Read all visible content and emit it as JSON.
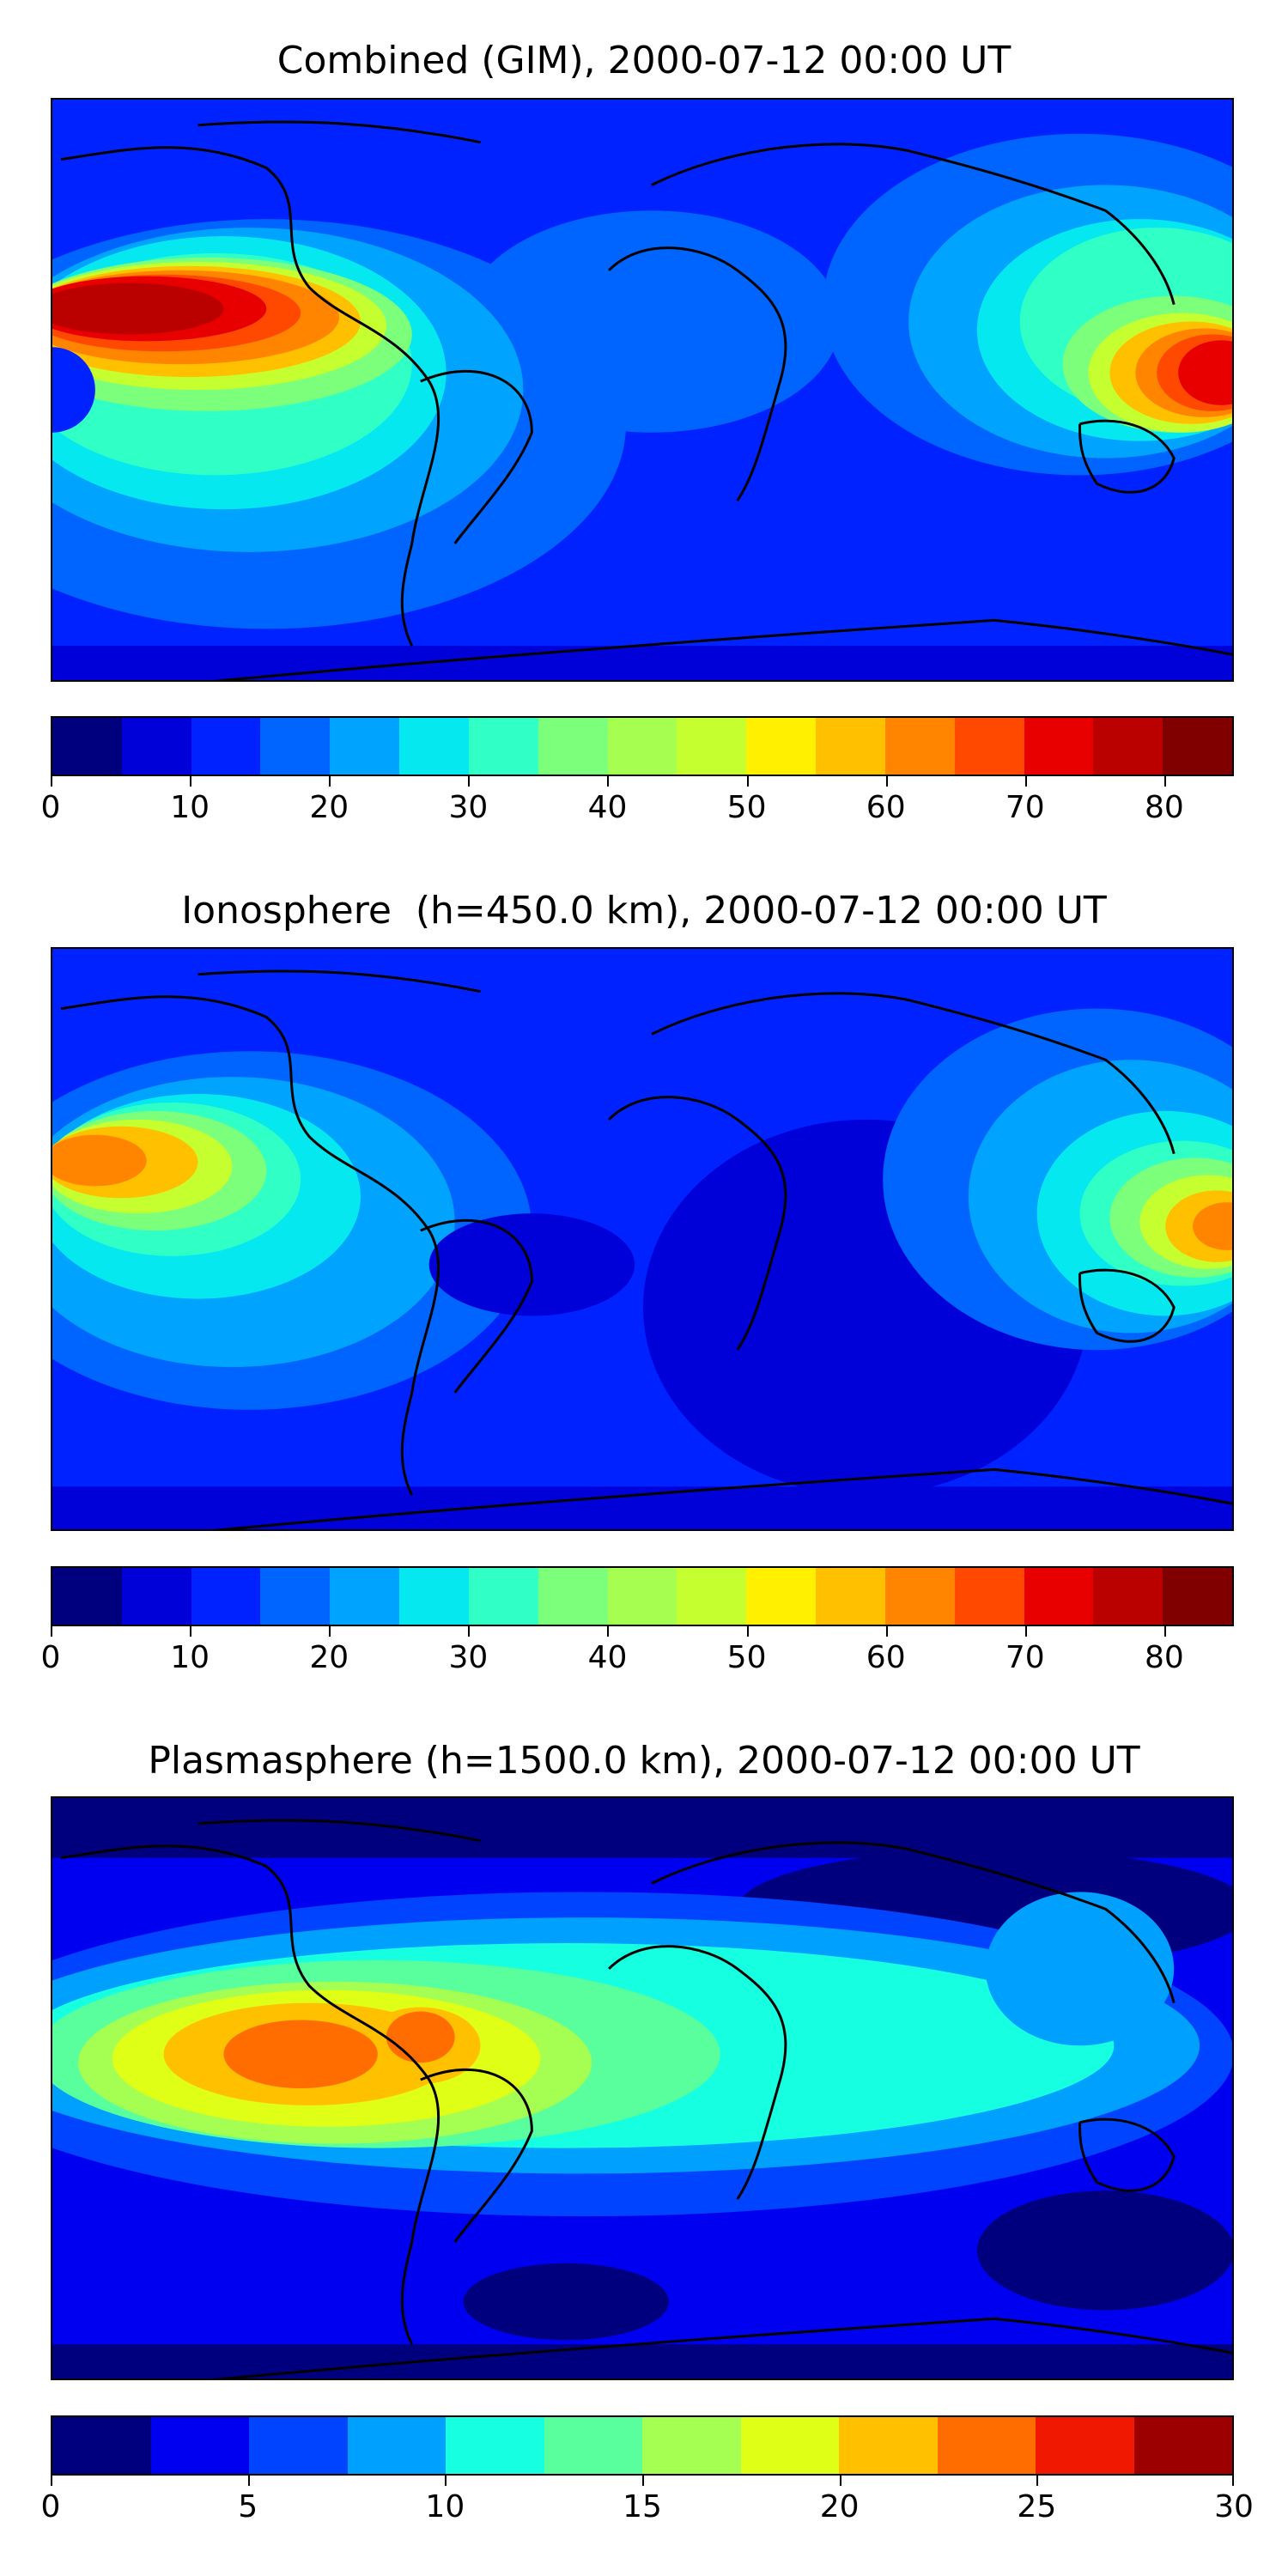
{
  "panels": [
    {
      "title": "Combined (GIM), 2000-07-12 00:00 UT",
      "colorbar": {
        "min": 0,
        "max": 85,
        "step": 5,
        "tick_labels": [
          "0",
          "10",
          "20",
          "30",
          "40",
          "50",
          "60",
          "70",
          "80"
        ],
        "tick_values": [
          0,
          10,
          20,
          30,
          40,
          50,
          60,
          70,
          80
        ]
      }
    },
    {
      "title": "Ionosphere  (h=450.0 km), 2000-07-12 00:00 UT",
      "colorbar": {
        "min": 0,
        "max": 85,
        "step": 5,
        "tick_labels": [
          "0",
          "10",
          "20",
          "30",
          "40",
          "50",
          "60",
          "70",
          "80"
        ],
        "tick_values": [
          0,
          10,
          20,
          30,
          40,
          50,
          60,
          70,
          80
        ]
      }
    },
    {
      "title": "Plasmasphere (h=1500.0 km), 2000-07-12 00:00 UT",
      "colorbar": {
        "min": 0,
        "max": 30,
        "step": 2.5,
        "tick_labels": [
          "0",
          "5",
          "10",
          "15",
          "20",
          "25",
          "30"
        ],
        "tick_values": [
          0,
          5,
          10,
          15,
          20,
          25,
          30
        ]
      }
    }
  ],
  "colors": {
    "jet17": [
      "#00007f",
      "#0000d9",
      "#0022ff",
      "#0064ff",
      "#00a4ff",
      "#06e8f0",
      "#30ffc6",
      "#7cff7a",
      "#a6ff50",
      "#c6ff30",
      "#fff000",
      "#ffc000",
      "#ff8400",
      "#ff4800",
      "#e80000",
      "#bb0000",
      "#800000"
    ],
    "jet12": [
      "#00007f",
      "#0000f0",
      "#0044ff",
      "#00a0ff",
      "#16ffe0",
      "#58ff9c",
      "#a4ff52",
      "#e0ff16",
      "#ffc000",
      "#ff6c00",
      "#f01800",
      "#9c0000"
    ],
    "coastline": "#000000"
  }
}
